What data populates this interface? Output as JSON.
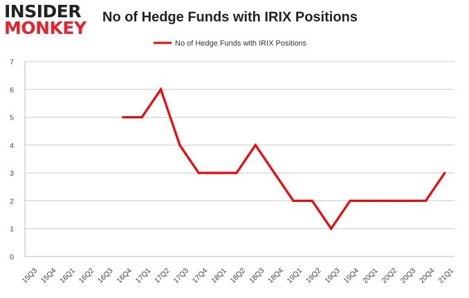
{
  "brand": {
    "logo_top": "INSIDER",
    "logo_bottom": "MONKEY",
    "logo_top_color": "#222222",
    "logo_bottom_color": "#e8212a"
  },
  "chart_data": {
    "type": "line",
    "title": "No of Hedge Funds with IRIX Positions",
    "xlabel": "",
    "ylabel": "",
    "ylim": [
      0,
      7
    ],
    "yticks": [
      0,
      1,
      2,
      3,
      4,
      5,
      6,
      7
    ],
    "grid": true,
    "legend_position": "top-center",
    "categories": [
      "15Q3",
      "15Q4",
      "16Q1",
      "16Q2",
      "16Q3",
      "16Q4",
      "17Q1",
      "17Q2",
      "17Q3",
      "17Q4",
      "18Q1",
      "18Q2",
      "18Q3",
      "18Q4",
      "19Q1",
      "19Q2",
      "19Q3",
      "19Q4",
      "20Q1",
      "20Q2",
      "20Q3",
      "20Q4",
      "21Q1"
    ],
    "series": [
      {
        "name": "No of Hedge Funds with IRIX Positions",
        "color": "#ff0000",
        "values": [
          null,
          null,
          null,
          null,
          null,
          5,
          5,
          6,
          4,
          3,
          3,
          3,
          4,
          3,
          2,
          2,
          1,
          2,
          2,
          2,
          2,
          2,
          3
        ]
      }
    ]
  }
}
